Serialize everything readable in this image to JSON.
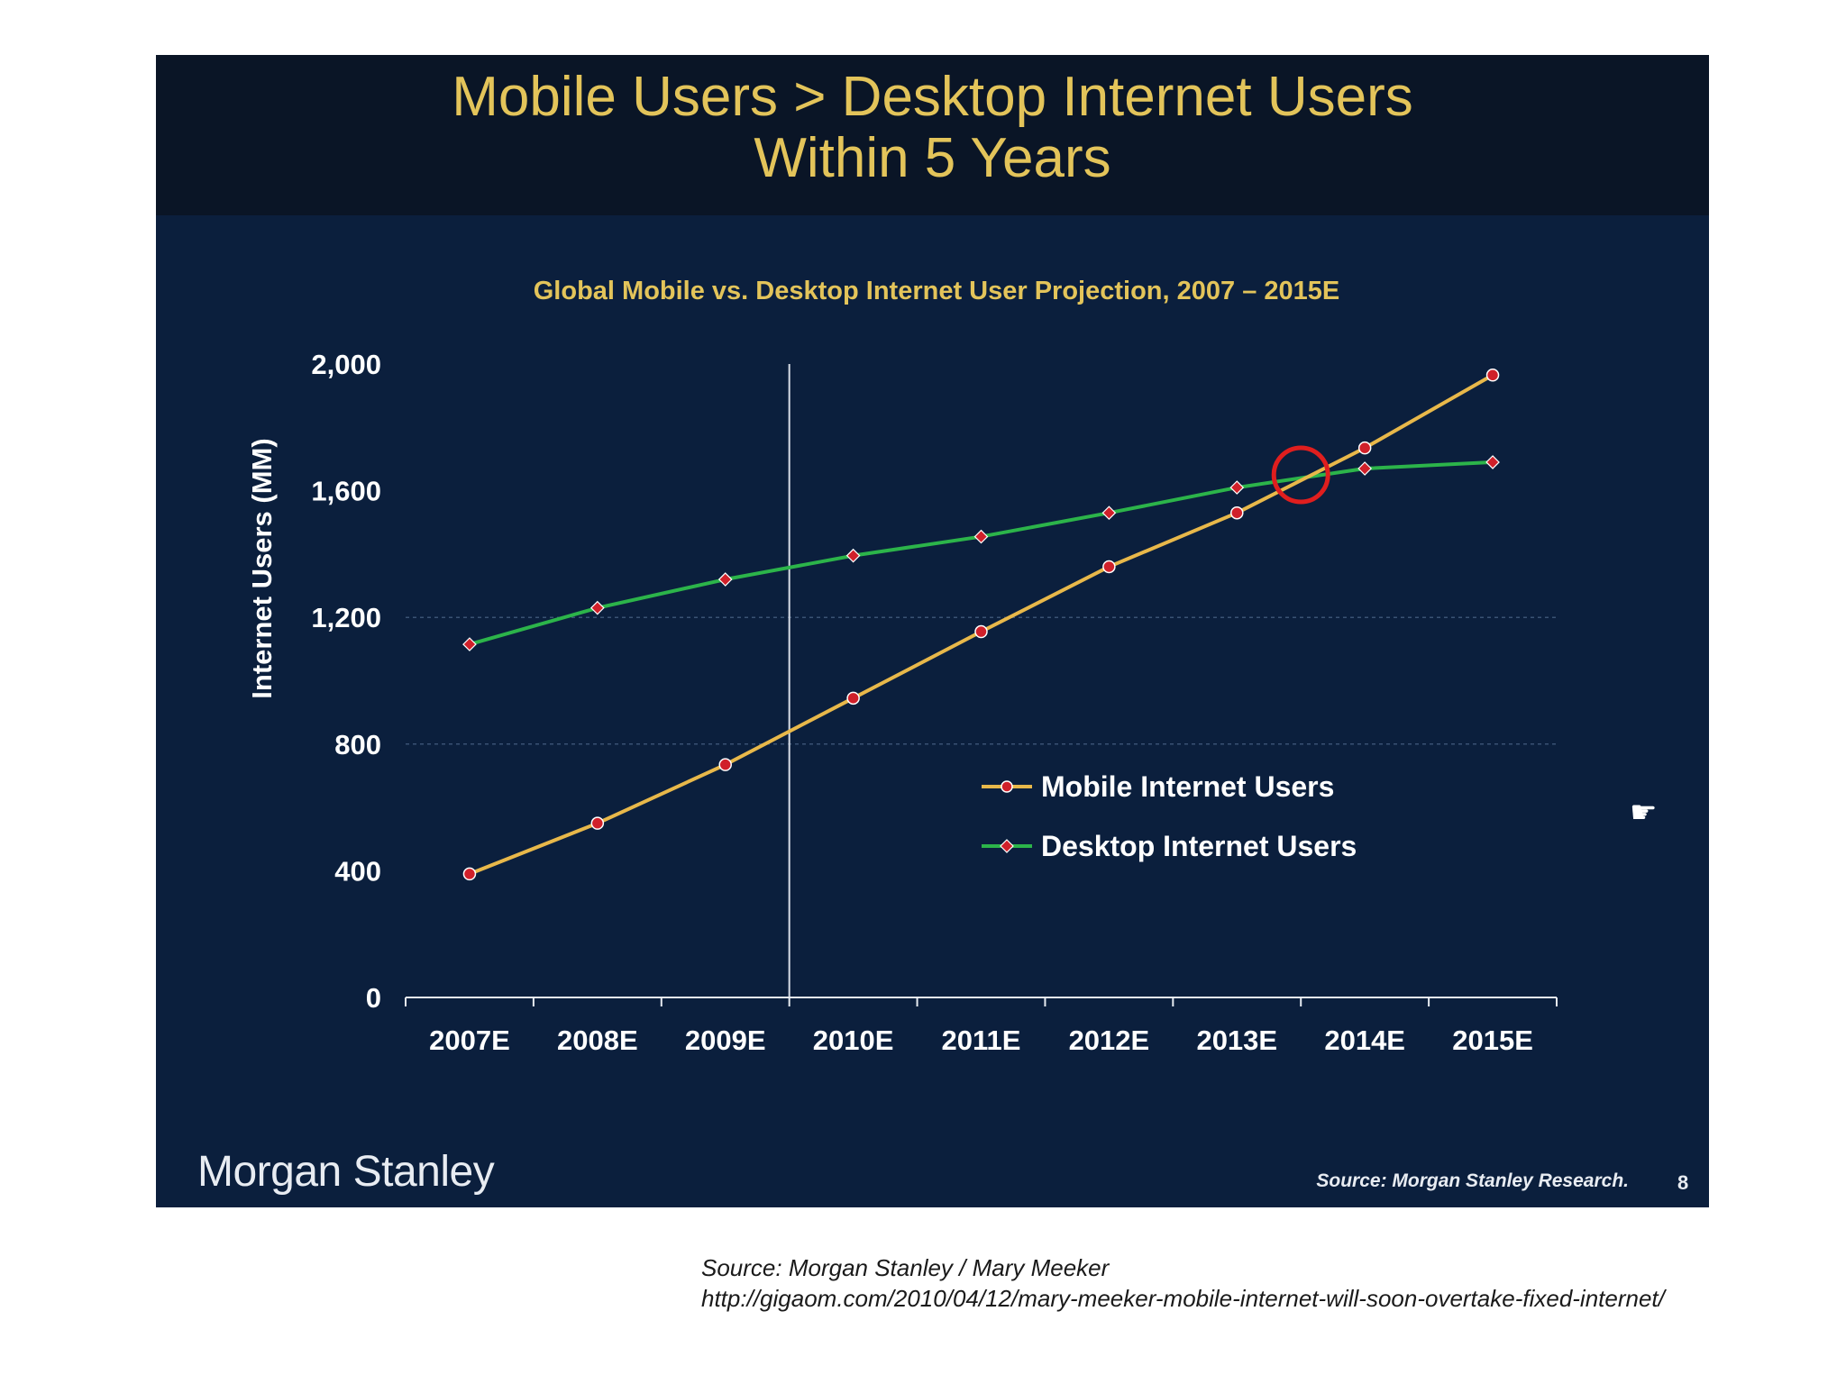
{
  "slide": {
    "title_line1": "Mobile Users > Desktop Internet Users",
    "title_line2": "Within 5 Years",
    "brand": "Morgan Stanley",
    "source": "Source: Morgan Stanley Research.",
    "page_number": "8",
    "pointer_icon": "pointing-hand-icon"
  },
  "footer": {
    "source_line": "Source: Morgan Stanley / Mary Meeker",
    "url_line": "http://gigaom.com/2010/04/12/mary-meeker-mobile-internet-will-soon-overtake-fixed-internet/"
  },
  "colors": {
    "title": "#e3c45a",
    "background": "#0b1f3d",
    "mobile_line": "#e8b84a",
    "desktop_line": "#2cb44a",
    "marker": "#d0202a",
    "highlight_circle": "#e01e1e"
  },
  "chart_data": {
    "type": "line",
    "title": "Global Mobile vs. Desktop Internet User Projection, 2007 – 2015E",
    "ylabel": "Internet Users (MM)",
    "xlabel": "",
    "categories": [
      "2007E",
      "2008E",
      "2009E",
      "2010E",
      "2011E",
      "2012E",
      "2013E",
      "2014E",
      "2015E"
    ],
    "yticks": [
      0,
      400,
      800,
      1200,
      1600,
      2000
    ],
    "ytick_labels": [
      "0",
      "400",
      "800",
      "1,200",
      "1,600",
      "2,000"
    ],
    "ylim": [
      0,
      2000
    ],
    "gridlines": [
      800,
      1200
    ],
    "divider_after_category": "2009E",
    "legend_position": "center-right",
    "crossover_highlight": {
      "x_between": [
        "2013E",
        "2014E"
      ],
      "y": 1650
    },
    "series": [
      {
        "name": "Mobile Internet Users",
        "values": [
          390,
          550,
          735,
          945,
          1155,
          1360,
          1530,
          1735,
          1965
        ]
      },
      {
        "name": "Desktop Internet Users",
        "values": [
          1115,
          1230,
          1320,
          1395,
          1455,
          1530,
          1610,
          1670,
          1690
        ]
      }
    ]
  }
}
